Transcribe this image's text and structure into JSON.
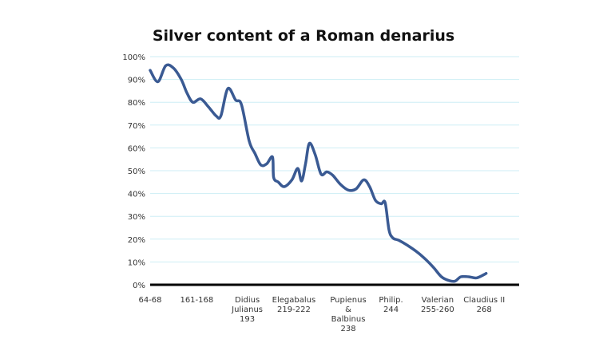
{
  "chart_data": {
    "type": "line",
    "title": "Silver content of a Roman denarius",
    "xlabel": "",
    "ylabel": "",
    "ylim": [
      0,
      100
    ],
    "y_ticks": [
      "0%",
      "10%",
      "20%",
      "30%",
      "40%",
      "50%",
      "60%",
      "70%",
      "80%",
      "90%",
      "100%"
    ],
    "grid": true,
    "legend": "none",
    "x_tick_labels": [
      {
        "x": 0,
        "lines": [
          "64-68"
        ]
      },
      {
        "x": 12,
        "lines": [
          "161-168"
        ]
      },
      {
        "x": 25,
        "lines": [
          "Didius",
          "Julianus",
          "193"
        ]
      },
      {
        "x": 37,
        "lines": [
          "Elegabalus",
          "219-222"
        ]
      },
      {
        "x": 51,
        "lines": [
          "Pupienus",
          "&",
          "Balbinus",
          "238"
        ]
      },
      {
        "x": 62,
        "lines": [
          "Philip.",
          "244"
        ]
      },
      {
        "x": 74,
        "lines": [
          "Valerian",
          "255-260"
        ]
      },
      {
        "x": 86,
        "lines": [
          "Claudius II",
          "268"
        ]
      }
    ],
    "xlim": [
      0,
      95
    ],
    "series": [
      {
        "values": [
          [
            0,
            94
          ],
          [
            2,
            89
          ],
          [
            4,
            96
          ],
          [
            6,
            95
          ],
          [
            8,
            90
          ],
          [
            9.5,
            84
          ],
          [
            11,
            80
          ],
          [
            13,
            81.5
          ],
          [
            15,
            78
          ],
          [
            17,
            74
          ],
          [
            18.2,
            74
          ],
          [
            20,
            86
          ],
          [
            22,
            81
          ],
          [
            23.5,
            79
          ],
          [
            25.5,
            63
          ],
          [
            27,
            57.5
          ],
          [
            28.5,
            52.5
          ],
          [
            30,
            53
          ],
          [
            31.5,
            56
          ],
          [
            31.8,
            47
          ],
          [
            33,
            45
          ],
          [
            34.5,
            43
          ],
          [
            36.5,
            46
          ],
          [
            38,
            51
          ],
          [
            39,
            45.5
          ],
          [
            40,
            53
          ],
          [
            41,
            62
          ],
          [
            42.5,
            57
          ],
          [
            44,
            48.5
          ],
          [
            45.5,
            49.5
          ],
          [
            47,
            48
          ],
          [
            49,
            44
          ],
          [
            51,
            41.5
          ],
          [
            53,
            42
          ],
          [
            55,
            46
          ],
          [
            56.5,
            43
          ],
          [
            58,
            37
          ],
          [
            59.5,
            35.5
          ],
          [
            60.5,
            36
          ],
          [
            61.5,
            24
          ],
          [
            62.5,
            20.5
          ],
          [
            64,
            19.5
          ],
          [
            66.5,
            17
          ],
          [
            69,
            14
          ],
          [
            71,
            11
          ],
          [
            73,
            7.5
          ],
          [
            75,
            3.5
          ],
          [
            77,
            1.8
          ],
          [
            78.5,
            1.6
          ],
          [
            80,
            3.5
          ],
          [
            82,
            3.5
          ],
          [
            84,
            3
          ],
          [
            86,
            4.5
          ],
          [
            86.5,
            5
          ]
        ]
      }
    ],
    "colors": {
      "line": "#3a5a93",
      "grid": "#cdeef5",
      "axis": "#000000",
      "text": "#333333"
    }
  }
}
